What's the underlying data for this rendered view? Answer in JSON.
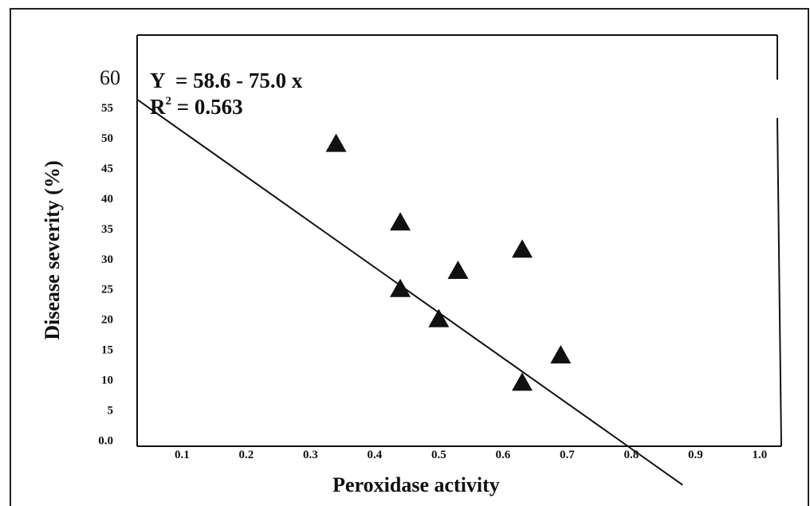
{
  "chart_data": {
    "type": "scatter",
    "xlabel": "Peroxidase activity",
    "ylabel": "Disease severity (%)",
    "x_ticks": [
      "0.1",
      "0.2",
      "0.3",
      "0.4",
      "0.5",
      "0.6",
      "0.7",
      "0.8",
      "0.9",
      "1.0"
    ],
    "y_ticks": [
      "0.0",
      "5",
      "10",
      "15",
      "20",
      "25",
      "30",
      "35",
      "40",
      "45",
      "50",
      "55",
      "60"
    ],
    "xlim": [
      0.03,
      1.03
    ],
    "ylim": [
      -1,
      67
    ],
    "grid": false,
    "marker": "triangle",
    "series": [
      {
        "x": [
          0.34,
          0.44,
          0.44,
          0.5,
          0.53,
          0.63,
          0.63,
          0.69
        ],
        "y": [
          49,
          36,
          25,
          20,
          28,
          31.5,
          9.5,
          14
        ]
      }
    ],
    "regression": {
      "intercept": 58.6,
      "slope": -75.0,
      "x_range": [
        0.03,
        0.88
      ]
    },
    "annotations": {
      "equation": "Y  = 58.6 - 75.0 x",
      "r2_label": "R",
      "r2_exp": "2",
      "r2_value": " = 0.563"
    }
  }
}
